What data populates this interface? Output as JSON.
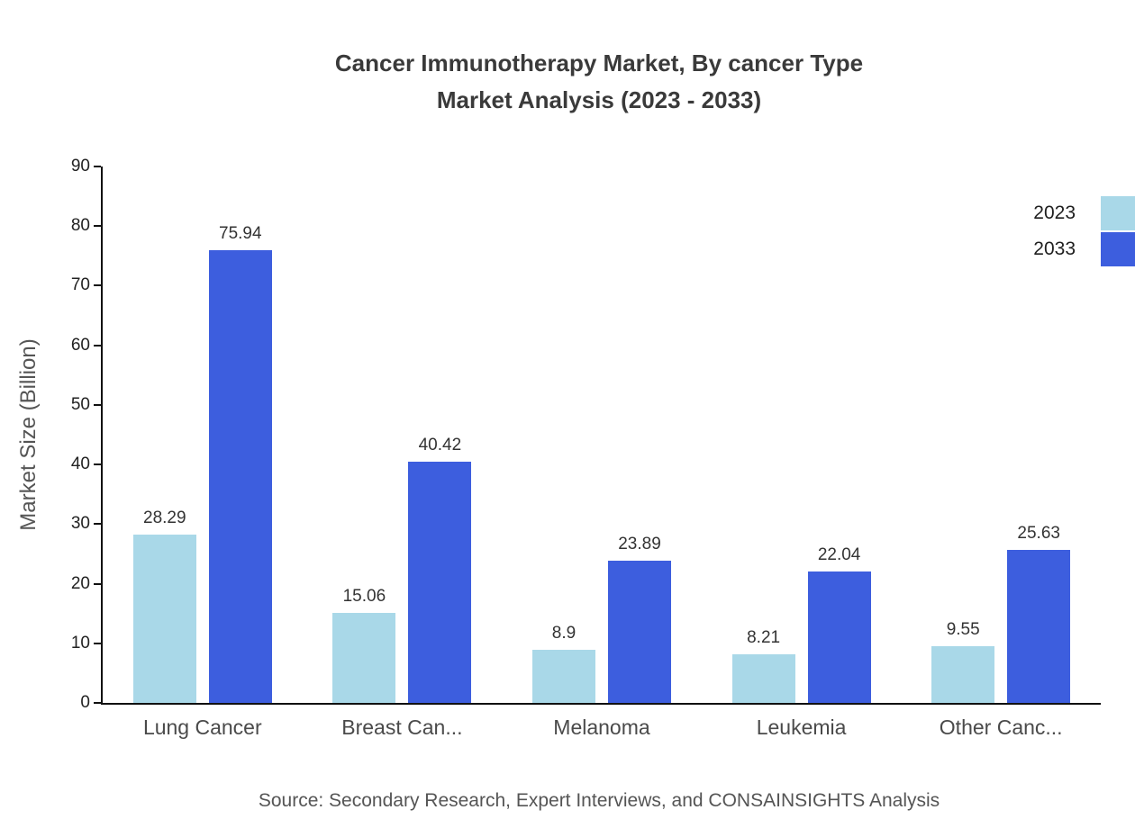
{
  "chart_data": {
    "type": "bar",
    "title": "Cancer Immunotherapy Market, By cancer Type Market Analysis (2023 - 2033)",
    "title_lines": [
      "Cancer Immunotherapy Market, By cancer Type",
      "Market Analysis (2023 - 2033)"
    ],
    "categories": [
      "Lung Cancer",
      "Breast Can...",
      "Melanoma",
      "Leukemia",
      "Other Canc..."
    ],
    "series": [
      {
        "name": "2023",
        "color": "#a9d8e8",
        "values": [
          28.29,
          15.06,
          8.9,
          8.21,
          9.55
        ]
      },
      {
        "name": "2033",
        "color": "#3d5ede",
        "values": [
          75.94,
          40.42,
          23.89,
          22.04,
          25.63
        ]
      }
    ],
    "xlabel": "",
    "ylabel": "Market Size (Billion)",
    "ylim": [
      0,
      90
    ],
    "ytick_step": 10,
    "grid": false,
    "legend_position": "top-right",
    "source_note": "Source: Secondary Research, Expert Interviews, and CONSAINSIGHTS Analysis"
  }
}
